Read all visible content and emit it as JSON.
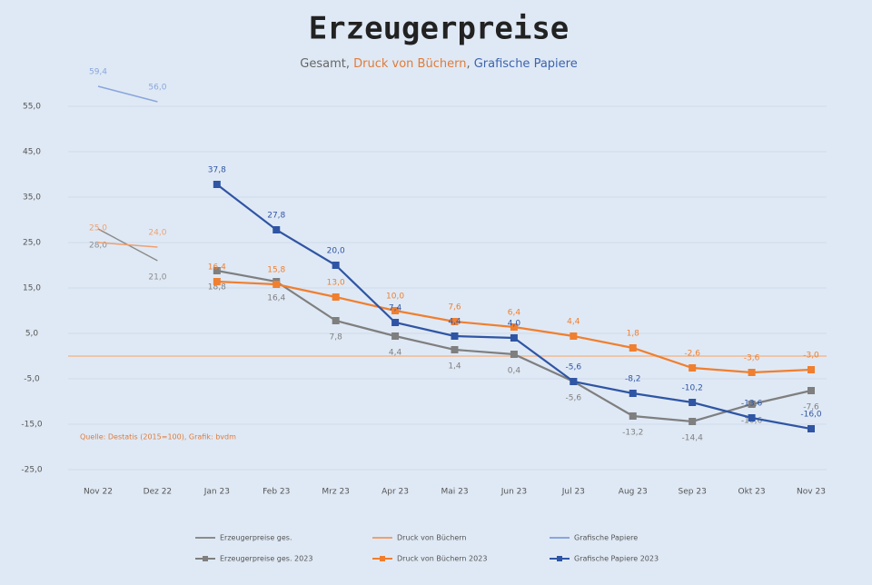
{
  "chart_data": {
    "type": "line",
    "title": "Erzeugerpreise",
    "subtitle": [
      {
        "text": "Gesamt",
        "color": "#666666"
      },
      {
        "text": ", ",
        "color": "#666666"
      },
      {
        "text": "Druck von Büchern",
        "color": "#e07b39"
      },
      {
        "text": ", ",
        "color": "#666666"
      },
      {
        "text": "Grafische Papiere",
        "color": "#3d63ad"
      }
    ],
    "annotation": "Quelle: Destatis (2015=100), Grafik: bvdm",
    "categories": [
      "Nov 22",
      "Dez 22",
      "Jan 23",
      "Feb 23",
      "Mrz 23",
      "Apr 23",
      "Mai 23",
      "Jun 23",
      "Jul 23",
      "Aug 23",
      "Sep 23",
      "Okt 23",
      "Nov 23"
    ],
    "ylim": [
      -25,
      58
    ],
    "yticks": [
      {
        "value": 55,
        "label": "55,0"
      },
      {
        "value": 45,
        "label": "45,0"
      },
      {
        "value": 35,
        "label": "35,0"
      },
      {
        "value": 25,
        "label": "25,0"
      },
      {
        "value": 15,
        "label": "15,0"
      },
      {
        "value": 5,
        "label": "5,0"
      },
      {
        "value": -5,
        "label": "-5,0"
      },
      {
        "value": -15,
        "label": "-15,0"
      },
      {
        "value": -25,
        "label": "-25,0"
      }
    ],
    "grid": true,
    "series": [
      {
        "name": "Erzeugerpreise ges.",
        "color": "#8c8c8c",
        "markers": false,
        "values": [
          28.0,
          21.0,
          null,
          null,
          null,
          null,
          null,
          null,
          null,
          null,
          null,
          null,
          null
        ],
        "value_labels": [
          "28,0",
          "21,0",
          null,
          null,
          null,
          null,
          null,
          null,
          null,
          null,
          null,
          null,
          null
        ]
      },
      {
        "name": "Druck von Büchern",
        "color": "#f0a070",
        "markers": false,
        "values": [
          25.0,
          24.0,
          null,
          null,
          null,
          null,
          null,
          null,
          null,
          null,
          null,
          null,
          null
        ],
        "value_labels": [
          "25,0",
          "24,0",
          null,
          null,
          null,
          null,
          null,
          null,
          null,
          null,
          null,
          null,
          null
        ]
      },
      {
        "name": "Grafische Papiere",
        "color": "#8aa6dc",
        "markers": false,
        "values": [
          59.4,
          56.0,
          null,
          null,
          null,
          null,
          null,
          null,
          null,
          null,
          null,
          null,
          null
        ],
        "value_labels": [
          "59,4",
          "56,0",
          null,
          null,
          null,
          null,
          null,
          null,
          null,
          null,
          null,
          null,
          null
        ]
      },
      {
        "name": "Erzeugerpreise ges. 2023",
        "color": "#7f7f7f",
        "markers": true,
        "values": [
          null,
          null,
          18.8,
          16.4,
          7.8,
          4.4,
          1.4,
          0.4,
          -5.6,
          -13.2,
          -14.4,
          -10.6,
          -7.6
        ],
        "value_labels": [
          null,
          null,
          "18,8",
          "16,4",
          "7,8",
          "4,4",
          "1,4",
          "0,4",
          "-5,6",
          "-13,2",
          "-14,4",
          "-10,6",
          "-7,6"
        ]
      },
      {
        "name": "Druck von Büchern 2023",
        "color": "#f07f2f",
        "markers": true,
        "values": [
          null,
          null,
          16.4,
          15.8,
          13.0,
          10.0,
          7.6,
          6.4,
          4.4,
          1.8,
          -2.6,
          -3.6,
          -3.0
        ],
        "value_labels": [
          null,
          null,
          "16,4",
          "15,8",
          "13,0",
          "10,0",
          "7,6",
          "6,4",
          "4,4",
          "1,8",
          "-2,6",
          "-3,6",
          "-3,0"
        ]
      },
      {
        "name": "Grafische Papiere 2023",
        "color": "#2f55a4",
        "markers": true,
        "values": [
          null,
          null,
          37.8,
          27.8,
          20.0,
          7.4,
          4.4,
          4.0,
          -5.6,
          -8.2,
          -10.2,
          -13.6,
          -16.0
        ],
        "value_labels": [
          null,
          null,
          "37,8",
          "27,8",
          "20,0",
          "7,4",
          "4,4",
          "4,0",
          "-5,6",
          "-8,2",
          "-10,2",
          "-13,6",
          "-16,0"
        ]
      }
    ]
  }
}
